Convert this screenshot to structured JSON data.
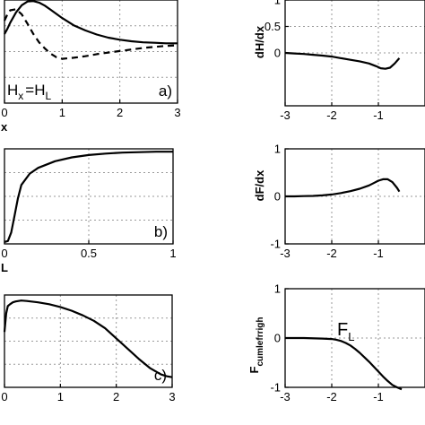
{
  "chart_data": [
    {
      "id": "a",
      "type": "line",
      "panel_label": "a)",
      "annotation": {
        "main": "H",
        "sub1": "x",
        "eq": "=",
        "main2": "H",
        "sub2": "L"
      },
      "xlabel": "x",
      "ylabel": "",
      "xlim": [
        0,
        3
      ],
      "ylim": [
        0,
        1
      ],
      "xticks": [
        0,
        1,
        2,
        3
      ],
      "yticks": [],
      "grid": true,
      "series": [
        {
          "style": "solid",
          "x": [
            0,
            0.05,
            0.1,
            0.2,
            0.3,
            0.4,
            0.5,
            0.6,
            0.7,
            0.8,
            0.9,
            1.0,
            1.2,
            1.4,
            1.6,
            1.8,
            2.0,
            2.2,
            2.4,
            2.6,
            2.8,
            3.0
          ],
          "y": [
            0.67,
            0.72,
            0.78,
            0.88,
            0.95,
            0.985,
            0.99,
            0.975,
            0.945,
            0.905,
            0.865,
            0.825,
            0.755,
            0.705,
            0.665,
            0.635,
            0.615,
            0.6,
            0.59,
            0.585,
            0.58,
            0.58
          ]
        },
        {
          "style": "dashed",
          "x": [
            0,
            0.05,
            0.1,
            0.2,
            0.3,
            0.4,
            0.5,
            0.6,
            0.7,
            0.8,
            0.9,
            1.0,
            1.2,
            1.4,
            1.6,
            1.8,
            2.0,
            2.2,
            2.4,
            2.6,
            2.8,
            3.0
          ],
          "y": [
            0.8,
            0.86,
            0.9,
            0.91,
            0.86,
            0.77,
            0.67,
            0.59,
            0.53,
            0.48,
            0.445,
            0.43,
            0.44,
            0.455,
            0.475,
            0.49,
            0.505,
            0.52,
            0.535,
            0.545,
            0.555,
            0.56
          ]
        }
      ]
    },
    {
      "id": "b",
      "type": "line",
      "panel_label": "b)",
      "xlabel": "L",
      "ylabel": "",
      "xlim": [
        0,
        1
      ],
      "ylim": [
        0,
        1
      ],
      "xticks": [
        0,
        0.5,
        1
      ],
      "xticklabels": [
        "0",
        "0.5",
        "1"
      ],
      "yticks": [],
      "grid": true,
      "series": [
        {
          "style": "solid",
          "x": [
            0,
            0.02,
            0.04,
            0.06,
            0.08,
            0.1,
            0.15,
            0.2,
            0.3,
            0.4,
            0.5,
            0.6,
            0.7,
            0.8,
            0.9,
            1.0
          ],
          "y": [
            0.02,
            0.03,
            0.12,
            0.3,
            0.48,
            0.62,
            0.74,
            0.8,
            0.87,
            0.91,
            0.935,
            0.95,
            0.96,
            0.965,
            0.97,
            0.97
          ]
        }
      ]
    },
    {
      "id": "c",
      "type": "line",
      "panel_label": "c)",
      "xlabel": "",
      "ylabel": "",
      "xlim": [
        0,
        3
      ],
      "ylim": [
        0,
        1
      ],
      "xticks": [
        0,
        1,
        2,
        3
      ],
      "yticks": [],
      "grid": true,
      "series": [
        {
          "style": "solid",
          "x": [
            0,
            0.03,
            0.06,
            0.1,
            0.15,
            0.2,
            0.3,
            0.4,
            0.6,
            0.8,
            1.0,
            1.2,
            1.4,
            1.6,
            1.8,
            2.0,
            2.2,
            2.4,
            2.6,
            2.8,
            2.9,
            3.0
          ],
          "y": [
            0.6,
            0.8,
            0.88,
            0.9,
            0.92,
            0.93,
            0.94,
            0.935,
            0.92,
            0.9,
            0.87,
            0.83,
            0.78,
            0.72,
            0.64,
            0.53,
            0.42,
            0.31,
            0.21,
            0.14,
            0.12,
            0.11
          ]
        }
      ]
    },
    {
      "id": "d",
      "type": "line",
      "ylabel": "dH/dx",
      "xlabel": "",
      "xlim": [
        -3,
        0
      ],
      "ylim": [
        -1,
        1
      ],
      "xticks": [
        -3,
        -2,
        -1
      ],
      "yticks": [
        0,
        0.5,
        1
      ],
      "grid": true,
      "series": [
        {
          "style": "solid",
          "x": [
            -3,
            -2.8,
            -2.6,
            -2.4,
            -2.2,
            -2.0,
            -1.8,
            -1.6,
            -1.4,
            -1.2,
            -1.05,
            -0.95,
            -0.85,
            -0.75,
            -0.65,
            -0.55
          ],
          "y": [
            0,
            -0.01,
            -0.02,
            -0.035,
            -0.05,
            -0.07,
            -0.1,
            -0.13,
            -0.16,
            -0.2,
            -0.25,
            -0.29,
            -0.3,
            -0.28,
            -0.2,
            -0.1
          ]
        }
      ]
    },
    {
      "id": "e",
      "type": "line",
      "ylabel": "dF/dx",
      "xlabel": "",
      "xlim": [
        -3,
        0
      ],
      "ylim": [
        -1,
        1
      ],
      "xticks": [
        -3,
        -2,
        -1
      ],
      "yticks": [
        -1,
        0,
        1
      ],
      "grid": true,
      "series": [
        {
          "style": "solid",
          "x": [
            -3,
            -2.8,
            -2.6,
            -2.4,
            -2.2,
            -2.0,
            -1.8,
            -1.6,
            -1.4,
            -1.2,
            -1.1,
            -1.0,
            -0.9,
            -0.8,
            -0.7,
            -0.6,
            -0.55
          ],
          "y": [
            0,
            0,
            0.005,
            0.01,
            0.02,
            0.04,
            0.07,
            0.11,
            0.16,
            0.23,
            0.28,
            0.33,
            0.36,
            0.36,
            0.3,
            0.18,
            0.1
          ]
        }
      ]
    },
    {
      "id": "f",
      "type": "line",
      "ylabel_main": "F",
      "ylabel_sub": "cumlefrrigh",
      "annotation": {
        "main": "F",
        "sub": "L"
      },
      "xlabel": "",
      "xlim": [
        -3,
        0
      ],
      "ylim": [
        -1,
        1
      ],
      "xticks": [
        -3,
        -2,
        -1
      ],
      "yticks": [
        -1,
        0,
        1
      ],
      "grid": true,
      "series": [
        {
          "style": "solid",
          "x": [
            -3,
            -2.6,
            -2.2,
            -2.0,
            -1.9,
            -1.8,
            -1.7,
            -1.6,
            -1.5,
            -1.4,
            -1.3,
            -1.2,
            -1.1,
            -1.0,
            -0.9,
            -0.8,
            -0.7,
            -0.6,
            -0.5
          ],
          "y": [
            0,
            0,
            -0.01,
            -0.02,
            -0.035,
            -0.06,
            -0.1,
            -0.15,
            -0.22,
            -0.3,
            -0.39,
            -0.48,
            -0.58,
            -0.68,
            -0.78,
            -0.87,
            -0.95,
            -1.0,
            -1.04
          ]
        }
      ]
    }
  ]
}
